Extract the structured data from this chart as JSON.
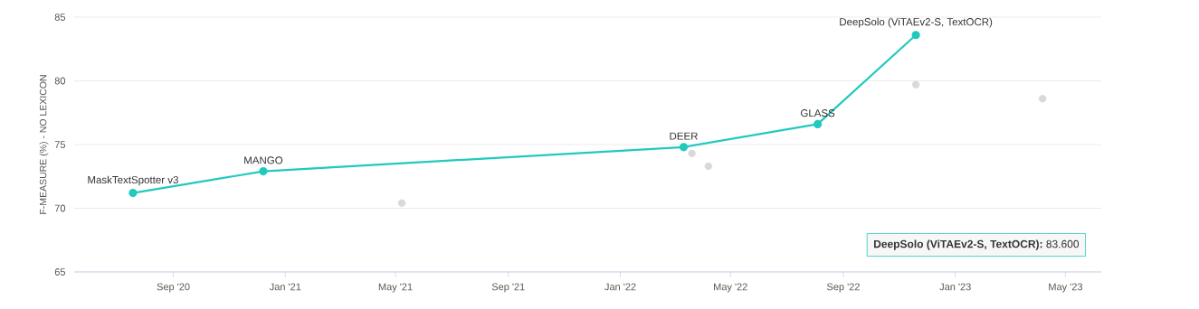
{
  "chart_data": {
    "type": "line",
    "ylabel": "F-MEASURE (%) - NO LEXICON",
    "xlim": [
      "2020-05-16",
      "2023-06-09"
    ],
    "xticks": [
      {
        "value": "2020-09-01",
        "label": "Sep '20"
      },
      {
        "value": "2021-01-01",
        "label": "Jan '21"
      },
      {
        "value": "2021-05-01",
        "label": "May '21"
      },
      {
        "value": "2021-09-01",
        "label": "Sep '21"
      },
      {
        "value": "2022-01-01",
        "label": "Jan '22"
      },
      {
        "value": "2022-05-01",
        "label": "May '22"
      },
      {
        "value": "2022-09-01",
        "label": "Sep '22"
      },
      {
        "value": "2023-01-01",
        "label": "Jan '23"
      },
      {
        "value": "2023-05-01",
        "label": "May '23"
      }
    ],
    "ylim": [
      65,
      85
    ],
    "yticks": [
      65,
      70,
      75,
      80,
      85
    ],
    "grid": "y",
    "marker": "circle",
    "series": [
      {
        "color": "#21c9bf",
        "x": [
          "2020-07-19",
          "2020-12-08",
          "2022-03-11",
          "2022-08-04",
          "2022-11-19"
        ],
        "values": [
          71.2,
          72.9,
          74.8,
          76.6,
          83.6
        ]
      },
      {
        "type": "scatter",
        "color": "#d9d9d9",
        "x": [
          "2021-05-08",
          "2022-03-20",
          "2022-04-07",
          "2022-11-19",
          "2023-04-06"
        ],
        "values": [
          70.4,
          74.3,
          73.3,
          79.7,
          78.6
        ]
      }
    ],
    "annotations": [
      {
        "text": "MaskTextSpotter v3",
        "x": "2020-07-19",
        "y": 71.2
      },
      {
        "text": "MANGO",
        "x": "2020-12-08",
        "y": 72.9
      },
      {
        "text": "DEER",
        "x": "2022-03-11",
        "y": 74.8
      },
      {
        "text": "GLASS",
        "x": "2022-08-04",
        "y": 76.6
      },
      {
        "text": "DeepSolo (ViTAEv2-S, TextOCR)",
        "x": "2022-11-19",
        "y": 83.6
      },
      "**DeepSolo (ViTAEv2-S, TextOCR):** 83.600"
    ]
  }
}
